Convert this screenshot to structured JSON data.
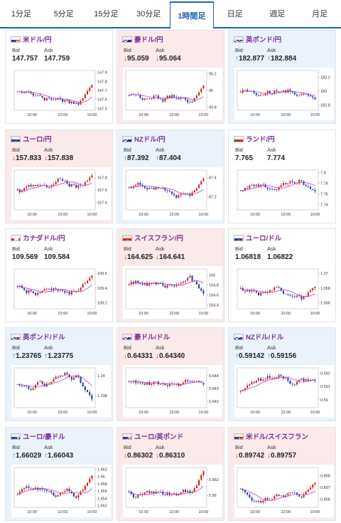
{
  "tabs": [
    {
      "label": "1分足",
      "active": false
    },
    {
      "label": "5分足",
      "active": false
    },
    {
      "label": "15分足",
      "active": false
    },
    {
      "label": "30分足",
      "active": false
    },
    {
      "label": "1時間足",
      "active": true
    },
    {
      "label": "日足",
      "active": false
    },
    {
      "label": "週足",
      "active": false
    },
    {
      "label": "月足",
      "active": false
    }
  ],
  "labels": {
    "bid": "Bid",
    "ask": "Ask"
  },
  "cards": [
    {
      "pair": "米ドル/円",
      "flag": "flag-us-icon",
      "trend": "neutral",
      "bid": "147.757",
      "ask": "147.759",
      "bid_dir": "",
      "ask_dir": "",
      "chart_data": {
        "type": "candlestick",
        "x_ticks": [
          "10:00",
          "22:00",
          "10:00"
        ],
        "y_ticks": [
          "147.9",
          "147.8",
          "147.7",
          "147.6",
          "147.5"
        ],
        "ylim": [
          147.48,
          147.92
        ],
        "last": 147.757
      }
    },
    {
      "pair": "豪ドル/円",
      "flag": "flag-au-icon",
      "trend": "down",
      "bid": "95.059",
      "ask": "95.064",
      "bid_dir": "down",
      "ask_dir": "down",
      "chart_data": {
        "type": "candlestick",
        "x_ticks": [
          "10:00",
          "22:00",
          "10:00"
        ],
        "y_ticks": [
          "95.2",
          "95",
          "94.8"
        ],
        "ylim": [
          94.76,
          95.24
        ],
        "last": 95.059
      }
    },
    {
      "pair": "英ポンド/円",
      "flag": "flag-uk-icon",
      "trend": "up",
      "bid": "182.877",
      "ask": "182.884",
      "bid_dir": "up",
      "ask_dir": "up",
      "chart_data": {
        "type": "candlestick",
        "x_ticks": [
          "10:00",
          "22:00",
          "10:00"
        ],
        "y_ticks": [
          "183.2",
          "183",
          "182.8"
        ],
        "ylim": [
          182.72,
          183.3
        ],
        "last": 182.877
      }
    },
    {
      "pair": "ユーロ/円",
      "flag": "flag-eu-icon",
      "trend": "down",
      "bid": "157.833",
      "ask": "157.838",
      "bid_dir": "down",
      "ask_dir": "down",
      "chart_data": {
        "type": "candlestick",
        "x_ticks": [
          "10:00",
          "22:00",
          "10:00"
        ],
        "y_ticks": [
          "157.8",
          "157.6",
          "157.4"
        ],
        "ylim": [
          157.28,
          157.92
        ],
        "last": 157.833
      }
    },
    {
      "pair": "NZドル/円",
      "flag": "flag-nz-icon",
      "trend": "up",
      "bid": "87.392",
      "ask": "87.404",
      "bid_dir": "up",
      "ask_dir": "up",
      "chart_data": {
        "type": "candlestick",
        "x_ticks": [
          "10:00",
          "22:00",
          "10:00"
        ],
        "y_ticks": [
          "87.4",
          "87.2"
        ],
        "ylim": [
          87.06,
          87.48
        ],
        "last": 87.392
      }
    },
    {
      "pair": "ランド/円",
      "flag": "flag-za-icon",
      "trend": "neutral",
      "bid": "7.765",
      "ask": "7.774",
      "bid_dir": "",
      "ask_dir": "",
      "chart_data": {
        "type": "candlestick",
        "x_ticks": [
          "10:00",
          "22:00",
          "10:00"
        ],
        "y_ticks": [
          "7.8",
          "7.78",
          "7.76",
          "7.74"
        ],
        "ylim": [
          7.73,
          7.805
        ],
        "last": 7.765
      }
    },
    {
      "pair": "カナダドル/円",
      "flag": "flag-ca-icon",
      "trend": "neutral",
      "bid": "109.569",
      "ask": "109.584",
      "bid_dir": "",
      "ask_dir": "",
      "chart_data": {
        "type": "candlestick",
        "x_ticks": [
          "10:00",
          "22:00",
          "10:00"
        ],
        "y_ticks": [
          "109.6",
          "109.4",
          "109.2"
        ],
        "ylim": [
          109.12,
          109.66
        ],
        "last": 109.569
      }
    },
    {
      "pair": "スイスフラン/円",
      "flag": "flag-ch-icon",
      "trend": "down",
      "bid": "164.625",
      "ask": "164.641",
      "bid_dir": "down",
      "ask_dir": "down",
      "chart_data": {
        "type": "candlestick",
        "x_ticks": [
          "10:00",
          "22:00",
          "10:00"
        ],
        "y_ticks": [
          "165",
          "164.8",
          "164.6",
          "164.4"
        ],
        "ylim": [
          164.32,
          165.12
        ],
        "last": 164.625
      }
    },
    {
      "pair": "ユーロ/ドル",
      "flag": "flag-eu-us-icon",
      "trend": "neutral",
      "bid": "1.06818",
      "ask": "1.06822",
      "bid_dir": "",
      "ask_dir": "",
      "chart_data": {
        "type": "candlestick",
        "x_ticks": [
          "10:00",
          "22:00",
          "10:00"
        ],
        "y_ticks": [
          "1.07",
          "1.068",
          "1.066"
        ],
        "ylim": [
          1.0652,
          1.0706
        ],
        "last": 1.06818
      }
    },
    {
      "pair": "英ポンド/ドル",
      "flag": "flag-uk-us-icon",
      "trend": "up",
      "bid": "1.23765",
      "ask": "1.23775",
      "bid_dir": "up",
      "ask_dir": "up",
      "chart_data": {
        "type": "candlestick",
        "x_ticks": [
          "10:00",
          "22:00",
          "10:00"
        ],
        "y_ticks": [
          "1.24",
          "1.238"
        ],
        "ylim": [
          1.2368,
          1.2408
        ],
        "last": 1.23765
      }
    },
    {
      "pair": "豪ドル/ドル",
      "flag": "flag-au-us-icon",
      "trend": "down",
      "bid": "0.64331",
      "ask": "0.64340",
      "bid_dir": "down",
      "ask_dir": "down",
      "chart_data": {
        "type": "candlestick",
        "x_ticks": [
          "10:00",
          "22:00",
          "10:00"
        ],
        "y_ticks": [
          "0.644",
          "0.643",
          "0.642"
        ],
        "ylim": [
          0.6415,
          0.6446
        ],
        "last": 0.64331
      }
    },
    {
      "pair": "NZドル/ドル",
      "flag": "flag-nz-us-icon",
      "trend": "up",
      "bid": "0.59142",
      "ask": "0.59156",
      "bid_dir": "up",
      "ask_dir": "up",
      "chart_data": {
        "type": "candlestick",
        "x_ticks": [
          "10:00",
          "22:00",
          "10:00"
        ],
        "y_ticks": [
          "0.592",
          "0.591",
          "0.59"
        ],
        "ylim": [
          0.5894,
          0.5924
        ],
        "last": 0.59142
      }
    },
    {
      "pair": "ユーロ/豪ドル",
      "flag": "flag-eu-au-icon",
      "trend": "up",
      "bid": "1.66029",
      "ask": "1.66043",
      "bid_dir": "up",
      "ask_dir": "up",
      "chart_data": {
        "type": "candlestick",
        "x_ticks": [
          "10:00",
          "22:00",
          "10:00"
        ],
        "y_ticks": [
          "1.662",
          "1.66",
          "1.658",
          "1.656",
          "1.654",
          "1.652"
        ],
        "ylim": [
          1.6515,
          1.6625
        ],
        "last": 1.66029
      }
    },
    {
      "pair": "ユーロ/英ポンド",
      "flag": "flag-eu-uk-icon",
      "trend": "down",
      "bid": "0.86302",
      "ask": "0.86310",
      "bid_dir": "down",
      "ask_dir": "down",
      "chart_data": {
        "type": "candlestick",
        "x_ticks": [
          "10:00",
          "22:00",
          "10:00"
        ],
        "y_ticks": [
          "0.862",
          "0.86"
        ],
        "ylim": [
          0.8585,
          0.8635
        ],
        "last": 0.86302
      }
    },
    {
      "pair": "米ドル/スイスフラン",
      "flag": "flag-us-ch-icon",
      "trend": "down",
      "bid": "0.89742",
      "ask": "0.89757",
      "bid_dir": "down",
      "ask_dir": "down",
      "chart_data": {
        "type": "candlestick",
        "x_ticks": [
          "10:00",
          "22:00",
          "10:00"
        ],
        "y_ticks": [
          "0.898",
          "0.897",
          "0.896"
        ],
        "ylim": [
          0.8953,
          0.8987
        ],
        "last": 0.89742
      }
    }
  ],
  "colors": {
    "up_candle": "#d81e1e",
    "down_candle": "#1d3f9c",
    "ma_line": "#c03ad0",
    "up_arrow": "#1b7fcf",
    "down_arrow": "#d63d3d",
    "tab_accent": "#1d5fb5"
  }
}
